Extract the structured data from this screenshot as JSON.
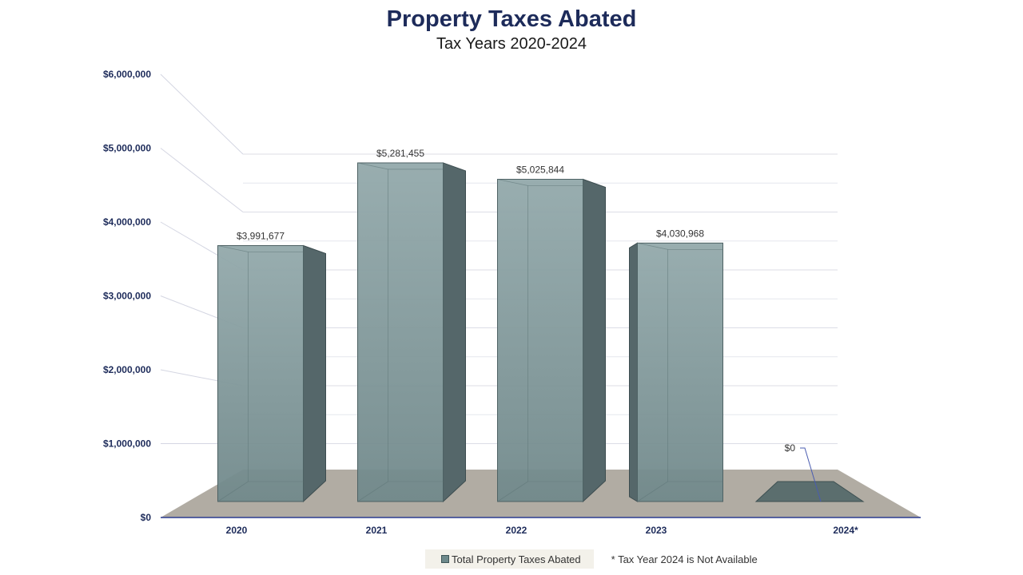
{
  "chart_data": {
    "type": "bar",
    "title": "Property Taxes Abated",
    "subtitle": "Tax Years 2020-2024",
    "categories": [
      "2020",
      "2021",
      "2022",
      "2023",
      "2024*"
    ],
    "series": [
      {
        "name": "Total Property Taxes Abated",
        "values": [
          3991677,
          5281455,
          5025844,
          4030968,
          0
        ],
        "data_labels": [
          "$3,991,677",
          "$5,281,455",
          "$5,025,844",
          "$4,030,968",
          "$0"
        ]
      }
    ],
    "ylim": [
      0,
      6000000
    ],
    "yticks": [
      0,
      1000000,
      2000000,
      3000000,
      4000000,
      5000000,
      6000000
    ],
    "ytick_labels": [
      "$0",
      "$1,000,000",
      "$2,000,000",
      "$3,000,000",
      "$4,000,000",
      "$5,000,000",
      "$6,000,000"
    ],
    "grid": true,
    "legend": "bottom",
    "footnote": "* Tax Year 2024 is Not Available",
    "colors": {
      "bar": "#7f9799",
      "bar_dark": "#55676a",
      "floor": "#b1aca3",
      "axis": "#2b3c8f",
      "title": "#1d2b5a"
    }
  }
}
